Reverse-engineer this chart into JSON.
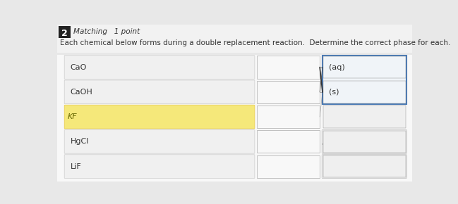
{
  "title": "Matching   1 point",
  "subtitle": "Each chemical below forms during a double replacement reaction.  Determine the correct phase for each.",
  "question_number": "2",
  "left_items": [
    "CaO",
    "CaOH",
    "KF",
    "HgCl",
    "LiF"
  ],
  "right_items": [
    "(aq)",
    "(s)",
    "",
    "",
    ""
  ],
  "left_box_color": "#f0f0f0",
  "left_box_border": "#cccccc",
  "mid_box_color": "#f5f5f5",
  "mid_box_border": "#aaaaaa",
  "right_box_color": "#f5f5f5",
  "right_box_border": "#aaaaaa",
  "right_top_box_border": "#5588bb",
  "highlight_color": "#f5e87a",
  "highlight_border": "#e8c84a",
  "background_color": "#e8e8e8",
  "text_color": "#333333",
  "number_box_color": "#222222",
  "number_box_text": "#ffffff",
  "line_color": "#333333",
  "header_bg": "#ffffff"
}
